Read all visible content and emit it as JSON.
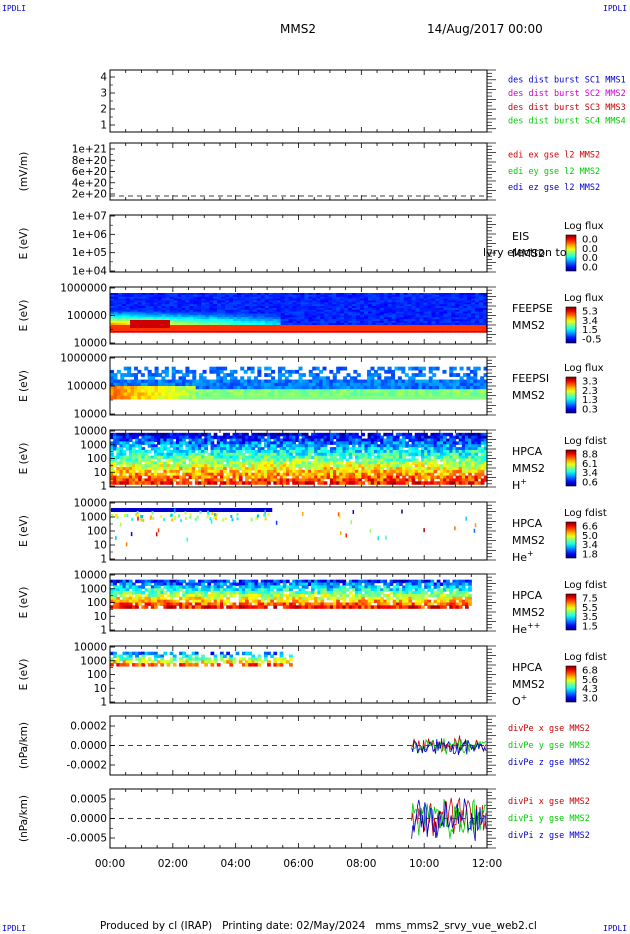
{
  "header": {
    "corner_label": "IPDLI",
    "title": "MMS2",
    "date": "14/Aug/2017 00:00"
  },
  "footer": {
    "text": "Produced by cl (IRAP)   Printing date: 02/May/2024   mms_mms2_srvy_vue_web2.cl"
  },
  "colors": {
    "red": "#cc0000",
    "green": "#00cc00",
    "blue": "#0000cc",
    "magenta": "#cc00cc",
    "axis": "#000000"
  },
  "chart_data": [
    {
      "id": "burst",
      "type": "line",
      "ylabel": "",
      "yticks": [
        "1",
        "2",
        "3",
        "4"
      ],
      "legend": [
        {
          "text": "des dist burst SC1 MMS1",
          "color": "#0000cc"
        },
        {
          "text": "des dist burst SC2 MMS2",
          "color": "#cc00cc"
        },
        {
          "text": "des dist burst SC3 MMS3",
          "color": "#cc0000"
        },
        {
          "text": "des dist burst SC4 MMS4",
          "color": "#00cc00"
        }
      ]
    },
    {
      "id": "edi",
      "type": "line",
      "ylabel": "(mV/m)",
      "yticks": [
        "2e+20",
        "4e+20",
        "6e+20",
        "8e+20",
        "1e+21"
      ],
      "legend": [
        {
          "text": "edi ex gse l2 MMS2",
          "color": "#cc0000"
        },
        {
          "text": "edi ey gse l2 MMS2",
          "color": "#00cc00"
        },
        {
          "text": "edi ez gse l2 MMS2",
          "color": "#0000cc"
        }
      ]
    },
    {
      "id": "eis",
      "type": "heatmap",
      "ylabel": "E (eV)",
      "yticks": [
        "1e+04",
        "1e+05",
        "1e+06",
        "1e+07"
      ],
      "side": [
        "EIS",
        "MMS2"
      ],
      "overlay": "lvry electron to",
      "cbar_title": "Log flux",
      "cbar_ticks": [
        "0.0",
        "0.0",
        "0.0",
        "0.0"
      ]
    },
    {
      "id": "feepse",
      "type": "heatmap",
      "ylabel": "E (eV)",
      "yticks": [
        "10000",
        "100000",
        "1000000"
      ],
      "side": [
        "FEEPSE",
        "MMS2"
      ],
      "cbar_title": "Log flux",
      "cbar_ticks": [
        "5.3",
        "3.4",
        "1.5",
        "-0.5"
      ]
    },
    {
      "id": "feepsi",
      "type": "heatmap",
      "ylabel": "E (eV)",
      "yticks": [
        "10000",
        "100000",
        "1000000"
      ],
      "side": [
        "FEEPSI",
        "MMS2"
      ],
      "cbar_title": "Log flux",
      "cbar_ticks": [
        "3.3",
        "2.3",
        "1.3",
        "0.3"
      ]
    },
    {
      "id": "hpca_h",
      "type": "heatmap",
      "ylabel": "E (eV)",
      "yticks": [
        "1",
        "10",
        "100",
        "1000",
        "10000"
      ],
      "side": [
        "HPCA",
        "MMS2",
        "H+"
      ],
      "cbar_title": "Log fdist",
      "cbar_ticks": [
        "8.8",
        "6.1",
        "3.4",
        "0.6"
      ]
    },
    {
      "id": "hpca_he",
      "type": "heatmap",
      "ylabel": "E (eV)",
      "yticks": [
        "1",
        "10",
        "100",
        "1000",
        "10000"
      ],
      "side": [
        "HPCA",
        "MMS2",
        "He+"
      ],
      "cbar_title": "Log fdist",
      "cbar_ticks": [
        "6.6",
        "5.0",
        "3.4",
        "1.8"
      ]
    },
    {
      "id": "hpca_hepp",
      "type": "heatmap",
      "ylabel": "E (eV)",
      "yticks": [
        "1",
        "10",
        "100",
        "1000",
        "10000"
      ],
      "side": [
        "HPCA",
        "MMS2",
        "He++"
      ],
      "cbar_title": "Log fdist",
      "cbar_ticks": [
        "7.5",
        "5.5",
        "3.5",
        "1.5"
      ]
    },
    {
      "id": "hpca_o",
      "type": "heatmap",
      "ylabel": "E (eV)",
      "yticks": [
        "1",
        "10",
        "100",
        "1000",
        "10000"
      ],
      "side": [
        "HPCA",
        "MMS2",
        "O+"
      ],
      "cbar_title": "Log fdist",
      "cbar_ticks": [
        "6.8",
        "5.6",
        "4.3",
        "3.0"
      ]
    },
    {
      "id": "divpe",
      "type": "line",
      "ylabel": "(nPa/km)",
      "yticks": [
        "-0.0002",
        "0.0000",
        "0.0002"
      ],
      "legend": [
        {
          "text": "divPe x gse MMS2",
          "color": "#cc0000"
        },
        {
          "text": "divPe y gse MMS2",
          "color": "#00cc00"
        },
        {
          "text": "divPe z gse MMS2",
          "color": "#0000cc"
        }
      ]
    },
    {
      "id": "divpi",
      "type": "line",
      "ylabel": "(nPa/km)",
      "yticks": [
        "-0.0005",
        "0.0000",
        "0.0005"
      ],
      "legend": [
        {
          "text": "divPi x gse MMS2",
          "color": "#cc0000"
        },
        {
          "text": "divPi y gse MMS2",
          "color": "#00cc00"
        },
        {
          "text": "divPi z gse MMS2",
          "color": "#0000cc"
        }
      ]
    }
  ],
  "xaxis": {
    "ticks": [
      "00:00",
      "02:00",
      "04:00",
      "06:00",
      "08:00",
      "10:00",
      "12:00"
    ]
  }
}
